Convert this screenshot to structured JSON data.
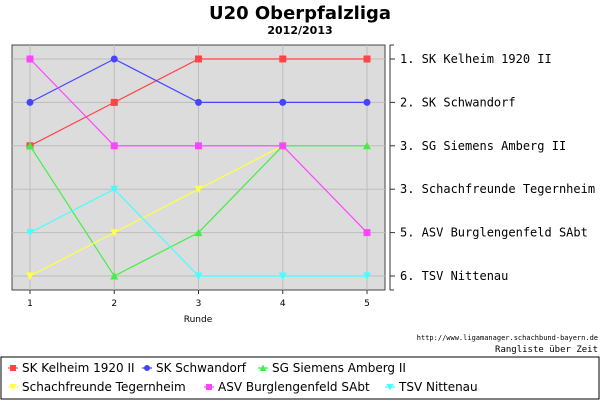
{
  "chart_data": {
    "type": "line",
    "title": "U20 Oberpfalzliga",
    "subtitle": "2012/2013",
    "xlabel": "Runde",
    "ylabel": "",
    "x": [
      1,
      2,
      3,
      4,
      5
    ],
    "ylim": [
      1,
      6
    ],
    "y_inverted": true,
    "grid": true,
    "source_text": "http://www.ligamanager.schachbund-bayern.de",
    "caption": "Rangliste über Zeit",
    "rank_labels": [
      {
        "text": "1. SK Kelheim 1920 II",
        "rank": 1
      },
      {
        "text": "2. SK Schwandorf",
        "rank": 2
      },
      {
        "text": "3. SG Siemens Amberg II",
        "rank": 3
      },
      {
        "text": "3. Schachfreunde Tegernheim",
        "rank": 4
      },
      {
        "text": "5. ASV Burglengenfeld SAbt",
        "rank": 5
      },
      {
        "text": "6. TSV Nittenau",
        "rank": 6
      }
    ],
    "legend_position": "bottom",
    "series": [
      {
        "name": "SK Kelheim 1920 II",
        "color": "#ff4444",
        "marker": "square",
        "values": [
          3,
          2,
          1,
          1,
          1
        ]
      },
      {
        "name": "SK Schwandorf",
        "color": "#4444ff",
        "marker": "circle",
        "values": [
          2,
          1,
          2,
          2,
          2
        ]
      },
      {
        "name": "SG Siemens Amberg II",
        "color": "#44ee44",
        "marker": "triangle-up",
        "values": [
          3,
          6,
          5,
          3,
          3
        ]
      },
      {
        "name": "Schachfreunde Tegernheim",
        "color": "#ffff44",
        "marker": "triangle-down",
        "values": [
          6,
          5,
          4,
          3,
          null
        ]
      },
      {
        "name": "ASV Burglengenfeld SAbt",
        "color": "#ff44ff",
        "marker": "square",
        "values": [
          1,
          3,
          3,
          3,
          5
        ]
      },
      {
        "name": "TSV Nittenau",
        "color": "#44ffff",
        "marker": "triangle-down",
        "values": [
          5,
          4,
          6,
          6,
          6
        ]
      }
    ]
  }
}
